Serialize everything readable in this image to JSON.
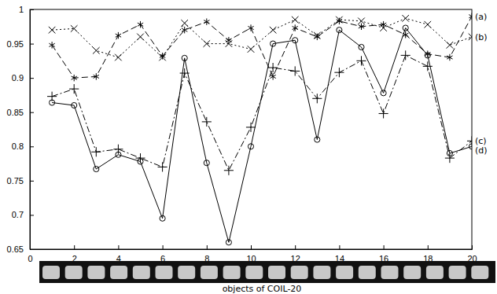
{
  "chart_data": {
    "type": "line",
    "x_label": "objects of COIL-20",
    "x": [
      1,
      2,
      3,
      4,
      5,
      6,
      7,
      8,
      9,
      10,
      11,
      12,
      13,
      14,
      15,
      16,
      17,
      18,
      19,
      20
    ],
    "xlim": [
      0,
      20
    ],
    "xticks": [
      0,
      2,
      4,
      6,
      8,
      10,
      12,
      14,
      16,
      18,
      20
    ],
    "ylim": [
      0.65,
      1
    ],
    "yticks": [
      0.65,
      0.7,
      0.75,
      0.8,
      0.85,
      0.9,
      0.95,
      1
    ],
    "grid": false,
    "series": [
      {
        "name": "(a)",
        "color": "#000000",
        "marker": "star",
        "line_style": "dashed",
        "values": [
          0.948,
          0.9,
          0.902,
          0.962,
          0.978,
          0.932,
          0.97,
          0.982,
          0.955,
          0.973,
          0.902,
          0.973,
          0.96,
          0.983,
          0.975,
          0.978,
          0.963,
          0.935,
          0.93,
          0.99
        ]
      },
      {
        "name": "(b)",
        "color": "#000000",
        "marker": "x",
        "line_style": "dotted",
        "values": [
          0.97,
          0.972,
          0.94,
          0.93,
          0.96,
          0.93,
          0.98,
          0.95,
          0.95,
          0.942,
          0.97,
          0.985,
          0.962,
          0.985,
          0.983,
          0.973,
          0.987,
          0.978,
          0.948,
          0.96
        ]
      },
      {
        "name": "(c)",
        "color": "#000000",
        "marker": "plus",
        "line_style": "dashdot",
        "values": [
          0.873,
          0.884,
          0.792,
          0.796,
          0.783,
          0.77,
          0.907,
          0.836,
          0.765,
          0.828,
          0.915,
          0.91,
          0.87,
          0.908,
          0.925,
          0.848,
          0.933,
          0.917,
          0.783,
          0.808
        ]
      },
      {
        "name": "(d)",
        "color": "#000000",
        "marker": "circle",
        "line_style": "solid",
        "values": [
          0.864,
          0.86,
          0.767,
          0.788,
          0.778,
          0.695,
          0.929,
          0.776,
          0.66,
          0.8,
          0.95,
          0.955,
          0.81,
          0.97,
          0.945,
          0.878,
          0.973,
          0.933,
          0.79,
          0.8
        ]
      }
    ]
  }
}
